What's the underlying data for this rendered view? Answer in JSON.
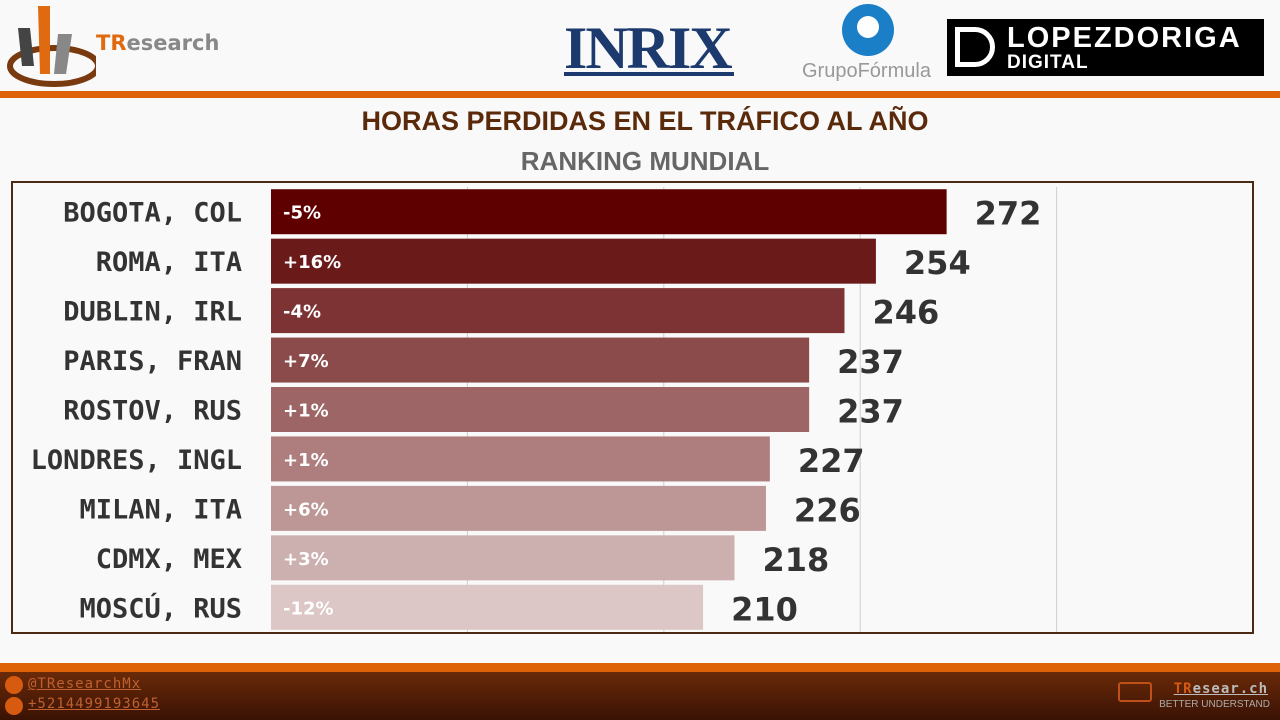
{
  "header": {
    "brand_prefix": "TR",
    "brand_suffix": "esearch",
    "partner_logos": [
      "INRIX",
      "GrupoFórmula",
      "LOPEZDORIGA",
      "DIGITAL"
    ]
  },
  "chart_data": {
    "type": "bar",
    "orientation": "horizontal",
    "title": "HORAS PERDIDAS EN EL TRÁFICO AL AÑO",
    "subtitle": "RANKING MUNDIAL",
    "categories": [
      "BOGOTA, COL",
      "ROMA, ITA",
      "DUBLIN, IRL",
      "PARIS, FRAN",
      "ROSTOV, RUS",
      "LONDRES, INGL",
      "MILAN, ITA",
      "CDMX, MEX",
      "MOSCÚ, RUS"
    ],
    "values": [
      272,
      254,
      246,
      237,
      237,
      227,
      226,
      218,
      210
    ],
    "change_labels": [
      "-5%",
      "+16%",
      "-4%",
      "+7%",
      "+1%",
      "+1%",
      "+6%",
      "+3%",
      "-12%"
    ],
    "xlim": [
      100,
      350
    ],
    "grid": true,
    "gridlines": [
      150,
      200,
      250,
      300
    ],
    "bar_colors": [
      "#5e0000",
      "#6b1a1a",
      "#7d3333",
      "#8b4b4b",
      "#9d6565",
      "#ae7e7e",
      "#bd9696",
      "#ccafaf",
      "#dcc6c6"
    ]
  },
  "footer": {
    "twitter": "@TResearchMx",
    "phone": "+5214499193645",
    "site_prefix": "TR",
    "site_suffix": "esear.ch",
    "tagline": "BETTER UNDERSTAND"
  }
}
